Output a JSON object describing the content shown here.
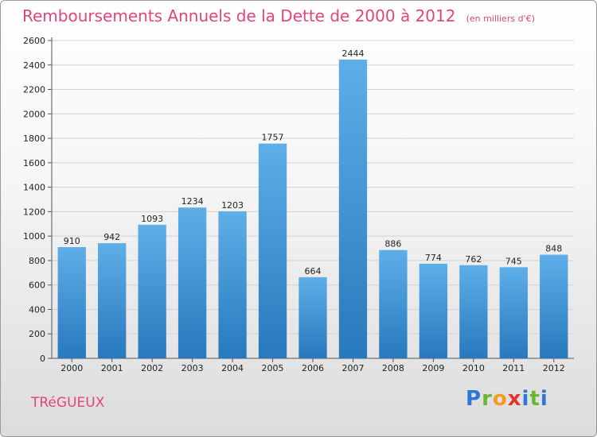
{
  "header": {
    "title": "Remboursements Annuels de la Dette de 2000 à 2012",
    "subtitle": "(en milliers d'€)"
  },
  "footer": {
    "commune": "TRéGUEUX",
    "logo_letters": [
      "P",
      "r",
      "o",
      "x",
      "i",
      "t",
      "i"
    ]
  },
  "colors": {
    "bar_top": "#5eaee8",
    "bar_bottom": "#2779bd",
    "title": "#e0457b",
    "grid": "#d2d2d2"
  },
  "chart_data": {
    "type": "bar",
    "title": "Remboursements Annuels de la Dette de 2000 à 2012",
    "subtitle": "(en milliers d'€)",
    "categories": [
      "2000",
      "2001",
      "2002",
      "2003",
      "2004",
      "2005",
      "2006",
      "2007",
      "2008",
      "2009",
      "2010",
      "2011",
      "2012"
    ],
    "values": [
      910,
      942,
      1093,
      1234,
      1203,
      1757,
      664,
      2444,
      886,
      774,
      762,
      745,
      848
    ],
    "ylim": [
      0,
      2600
    ],
    "yticks": [
      0,
      200,
      400,
      600,
      800,
      1000,
      1200,
      1400,
      1600,
      1800,
      2000,
      2200,
      2400,
      2600
    ],
    "grid": true,
    "legend": "none"
  }
}
